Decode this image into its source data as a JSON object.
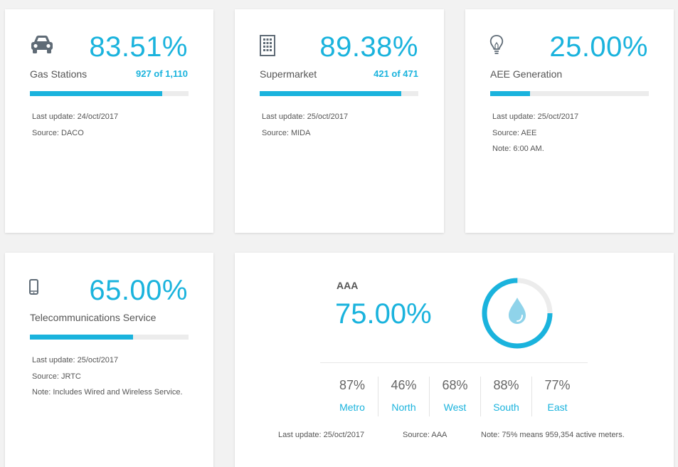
{
  "cards": [
    {
      "icon": "car-icon",
      "percentage": "83.51%",
      "label": "Gas Stations",
      "count": "927 of 1,110",
      "progress": 0.8351,
      "last_update": "Last update: 24/oct/2017",
      "source": "Source: DACO",
      "note": ""
    },
    {
      "icon": "building-icon",
      "percentage": "89.38%",
      "label": "Supermarket",
      "count": "421 of 471",
      "progress": 0.8938,
      "last_update": "Last update: 25/oct/2017",
      "source": "Source: MIDA",
      "note": ""
    },
    {
      "icon": "lightbulb-icon",
      "percentage": "25.00%",
      "label": "AEE Generation",
      "count": "",
      "progress": 0.25,
      "last_update": "Last update: 25/oct/2017",
      "source": "Source: AEE",
      "note": "Note: 6:00 AM."
    },
    {
      "icon": "phone-icon",
      "percentage": "65.00%",
      "label": "Telecommunications Service",
      "count": "",
      "progress": 0.65,
      "last_update": "Last update: 25/oct/2017",
      "source": "Source: JRTC",
      "note": "Note: Includes Wired and Wireless Service."
    }
  ],
  "aaa": {
    "name": "AAA",
    "icon": "water-drop-icon",
    "percentage": "75.00%",
    "progress": 0.75,
    "regions": [
      {
        "value": "87%",
        "name": "Metro"
      },
      {
        "value": "46%",
        "name": "North"
      },
      {
        "value": "68%",
        "name": "West"
      },
      {
        "value": "88%",
        "name": "South"
      },
      {
        "value": "77%",
        "name": "East"
      }
    ],
    "last_update": "Last update: 25/oct/2017",
    "source": "Source: AAA",
    "note": "Note: 75% means 959,354 active meters."
  },
  "colors": {
    "accent": "#1ab3dd",
    "track": "#ececec",
    "icon": "#5f6b76",
    "drop": "#8fd3ea"
  }
}
